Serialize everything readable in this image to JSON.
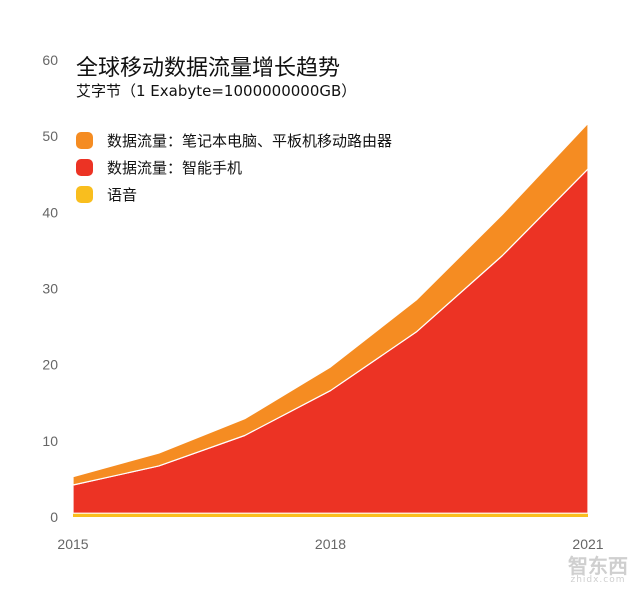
{
  "chart_data": {
    "type": "area",
    "stacked": true,
    "title": "全球移动数据流量增长趋势",
    "subtitle": "艾字节（1 Exabyte=1000000000GB）",
    "x": [
      2015,
      2016,
      2017,
      2018,
      2019,
      2020,
      2021
    ],
    "xticks": [
      "2015",
      "2018",
      "2021"
    ],
    "yticks": [
      "0",
      "10",
      "20",
      "30",
      "40",
      "50",
      "60"
    ],
    "ylim": [
      0,
      60
    ],
    "grid": false,
    "legend_position": "top-left",
    "series": [
      {
        "name": "语音",
        "color": "#F9BE1E",
        "values": [
          0.5,
          0.5,
          0.5,
          0.5,
          0.5,
          0.5,
          0.5
        ]
      },
      {
        "name": "数据流量：智能手机",
        "color": "#EC3324",
        "values": [
          3.7,
          6.2,
          10.2,
          16.1,
          23.8,
          33.8,
          45.2
        ]
      },
      {
        "name": "数据流量：笔记本电脑、平板机移动路由器",
        "color": "#F58C22",
        "values": [
          1.1,
          1.7,
          2.2,
          3.1,
          4.2,
          5.4,
          6.0
        ]
      }
    ],
    "legend_order": [
      2,
      1,
      0
    ]
  },
  "watermark": {
    "text": "智东西",
    "url_text": "zhidx.com"
  }
}
